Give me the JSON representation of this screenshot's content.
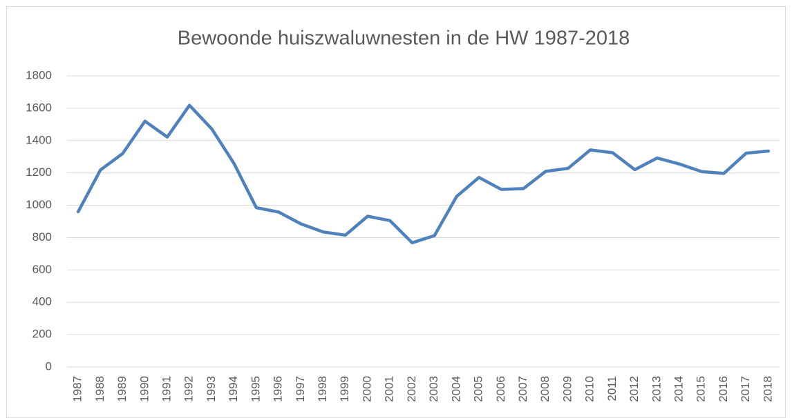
{
  "chart_data": {
    "type": "line",
    "title": "Bewoonde huiszwaluwnesten in de HW 1987-2018",
    "categories": [
      "1987",
      "1988",
      "1989",
      "1990",
      "1991",
      "1992",
      "1993",
      "1994",
      "1995",
      "1996",
      "1997",
      "1998",
      "1999",
      "2000",
      "2001",
      "2002",
      "2003",
      "2004",
      "2005",
      "2006",
      "2007",
      "2008",
      "2009",
      "2010",
      "2011",
      "2012",
      "2013",
      "2014",
      "2015",
      "2016",
      "2017",
      "2018"
    ],
    "values": [
      960,
      1218,
      1320,
      1520,
      1422,
      1618,
      1472,
      1258,
      985,
      958,
      885,
      835,
      815,
      932,
      905,
      768,
      812,
      1055,
      1172,
      1098,
      1103,
      1210,
      1228,
      1342,
      1325,
      1220,
      1292,
      1255,
      1208,
      1197,
      1322,
      1335
    ],
    "color": "#4f81bd",
    "ylim": [
      0,
      1800
    ],
    "yticks": [
      0,
      200,
      400,
      600,
      800,
      1000,
      1200,
      1400,
      1600,
      1800
    ],
    "grid": true
  }
}
